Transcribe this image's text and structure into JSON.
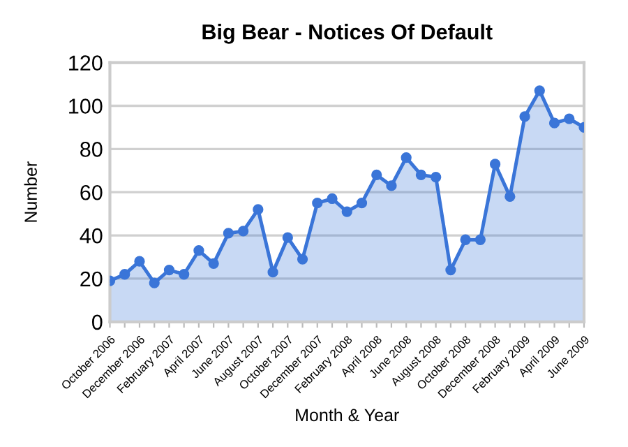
{
  "chart_data": {
    "type": "area",
    "title": "Big Bear - Notices Of Default",
    "xlabel": "Month & Year",
    "ylabel": "Number",
    "categories": [
      "October 2006",
      null,
      "December 2006",
      null,
      "February 2007",
      null,
      "April 2007",
      null,
      "June 2007",
      null,
      "August 2007",
      null,
      "October 2007",
      null,
      "December 2007",
      null,
      "February 2008",
      null,
      "April 2008",
      null,
      "June 2008",
      null,
      "August 2008",
      null,
      "October 2008",
      null,
      "December 2008",
      null,
      "February 2009",
      null,
      "April 2009",
      null,
      "June 2009"
    ],
    "series": [
      {
        "color": "#3a75d8",
        "values": [
          19,
          22,
          28,
          18,
          24,
          22,
          33,
          27,
          41,
          42,
          52,
          23,
          39,
          29,
          55,
          57,
          51,
          55,
          68,
          63,
          76,
          68,
          67,
          24,
          38,
          38,
          73,
          58,
          95,
          107,
          92,
          94,
          90
        ]
      }
    ],
    "ylim": [
      0,
      120
    ],
    "yticks": [
      0,
      20,
      40,
      60,
      80,
      100,
      120
    ],
    "grid": "y",
    "marker": "circle",
    "line_style": "solid",
    "legend": false
  }
}
